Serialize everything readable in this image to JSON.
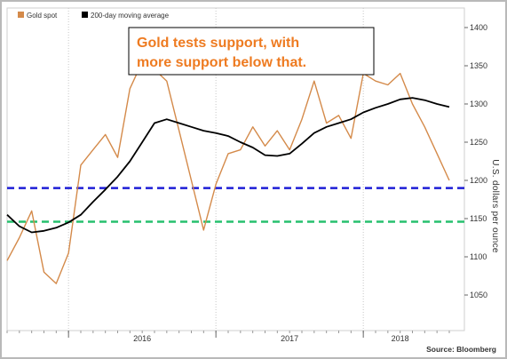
{
  "chart_data": {
    "type": "line",
    "title": "",
    "xlabel": "",
    "ylabel": "U.S. dollars per ounce",
    "ylim": [
      1000,
      1420
    ],
    "y_ticks": [
      1050,
      1100,
      1150,
      1200,
      1250,
      1300,
      1350,
      1400
    ],
    "x_tick_labels": [
      "2016",
      "2017",
      "2018"
    ],
    "legend": {
      "placement": "top-left",
      "items": [
        {
          "label": "Gold spot",
          "color": "#d48a4a"
        },
        {
          "label": "200-day moving average",
          "color": "#000000"
        }
      ]
    },
    "annotation": {
      "lines": [
        "Gold tests support, with",
        "more support below that."
      ],
      "color": "#ee7b21"
    },
    "source": "Source: Bloomberg",
    "grid": {
      "horizontal": false,
      "vertical_dotted": true
    },
    "support_levels": [
      {
        "value": 1190,
        "color": "#1f1fd6",
        "style": "dashed"
      },
      {
        "value": 1146,
        "color": "#27c06e",
        "style": "dashed"
      }
    ],
    "series": [
      {
        "name": "Gold spot",
        "color": "#d48a4a",
        "x": [
          "2015-08",
          "2015-09",
          "2015-10",
          "2015-11",
          "2015-12",
          "2016-01",
          "2016-02",
          "2016-03",
          "2016-04",
          "2016-05",
          "2016-06",
          "2016-07",
          "2016-08",
          "2016-09",
          "2016-10",
          "2016-11",
          "2016-12",
          "2017-01",
          "2017-02",
          "2017-03",
          "2017-04",
          "2017-05",
          "2017-06",
          "2017-07",
          "2017-08",
          "2017-09",
          "2017-10",
          "2017-11",
          "2017-12",
          "2018-01",
          "2018-02",
          "2018-03",
          "2018-04",
          "2018-05",
          "2018-06",
          "2018-07",
          "2018-08"
        ],
        "values": [
          1095,
          1125,
          1160,
          1080,
          1065,
          1105,
          1220,
          1240,
          1260,
          1230,
          1320,
          1355,
          1345,
          1330,
          1265,
          1200,
          1135,
          1195,
          1235,
          1240,
          1270,
          1245,
          1265,
          1240,
          1280,
          1330,
          1275,
          1285,
          1255,
          1340,
          1330,
          1325,
          1340,
          1300,
          1270,
          1235,
          1200
        ]
      },
      {
        "name": "200-day moving average",
        "color": "#000000",
        "x": [
          "2015-08",
          "2015-09",
          "2015-10",
          "2015-11",
          "2015-12",
          "2016-01",
          "2016-02",
          "2016-03",
          "2016-04",
          "2016-05",
          "2016-06",
          "2016-07",
          "2016-08",
          "2016-09",
          "2016-10",
          "2016-11",
          "2016-12",
          "2017-01",
          "2017-02",
          "2017-03",
          "2017-04",
          "2017-05",
          "2017-06",
          "2017-07",
          "2017-08",
          "2017-09",
          "2017-10",
          "2017-11",
          "2017-12",
          "2018-01",
          "2018-02",
          "2018-03",
          "2018-04",
          "2018-05",
          "2018-06",
          "2018-07",
          "2018-08"
        ],
        "values": [
          1155,
          1140,
          1132,
          1134,
          1138,
          1145,
          1155,
          1172,
          1188,
          1205,
          1225,
          1250,
          1275,
          1280,
          1275,
          1270,
          1265,
          1262,
          1258,
          1250,
          1243,
          1233,
          1232,
          1235,
          1248,
          1262,
          1270,
          1275,
          1280,
          1289,
          1295,
          1300,
          1306,
          1308,
          1305,
          1300,
          1296
        ]
      }
    ]
  }
}
